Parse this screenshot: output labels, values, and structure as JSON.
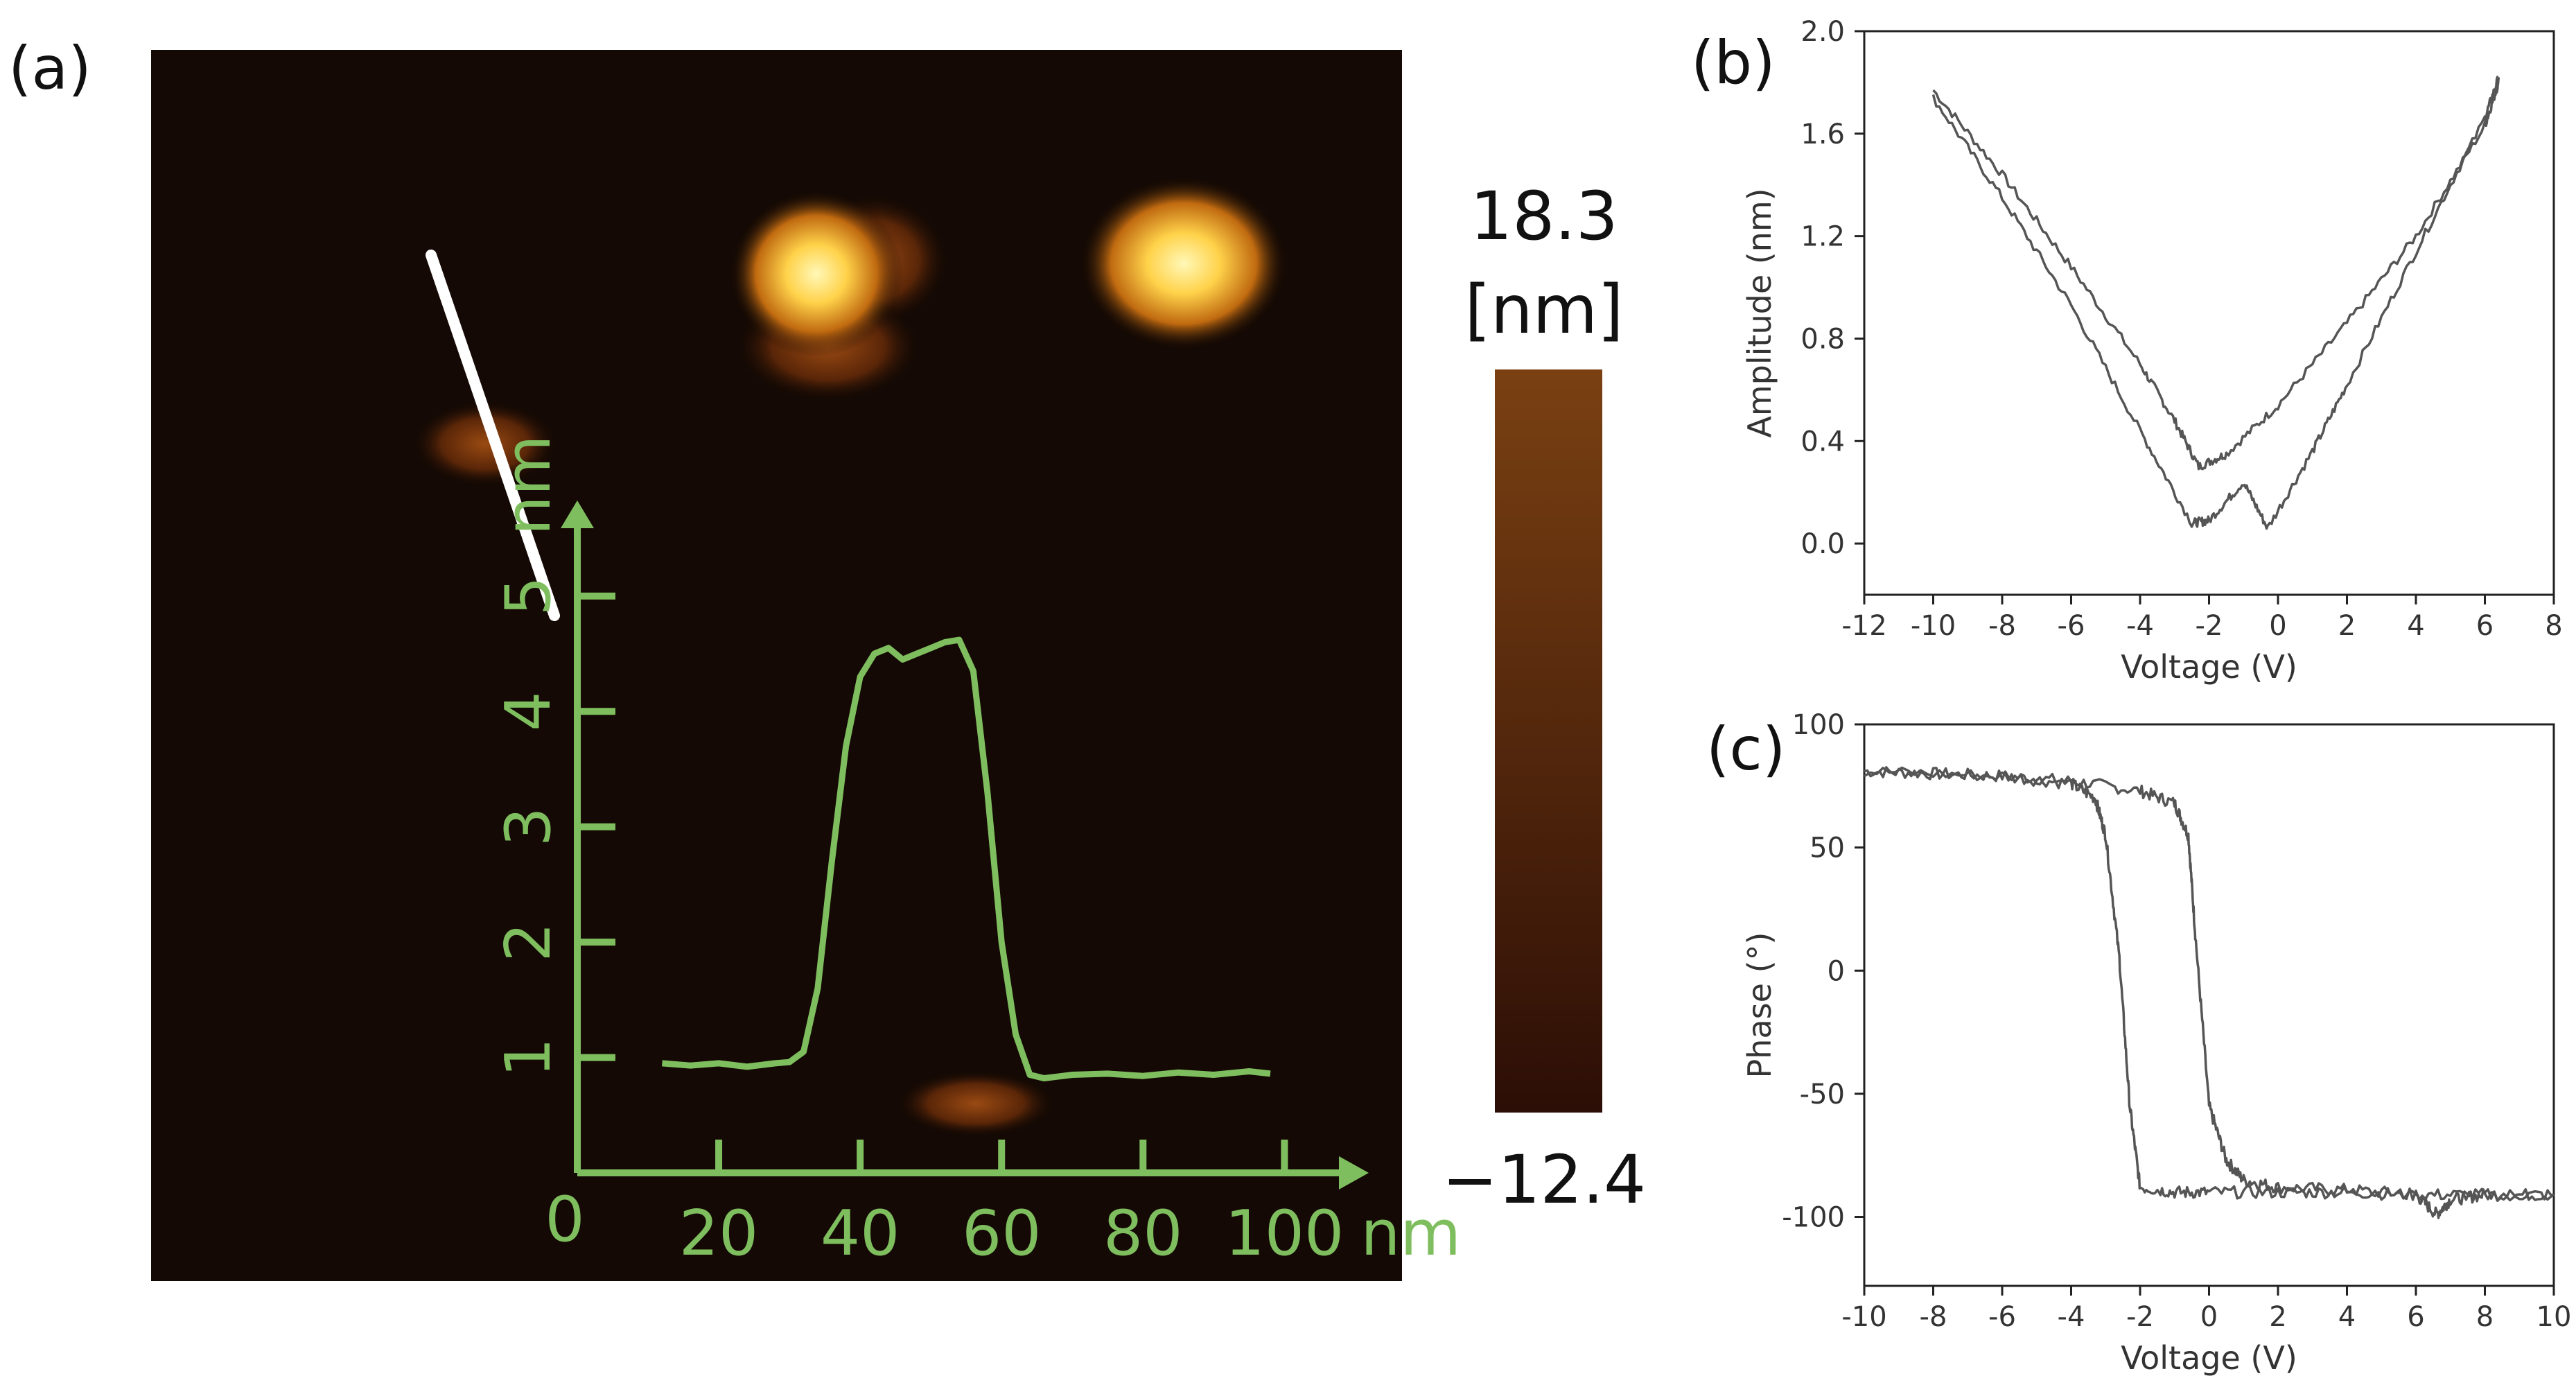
{
  "colors": {
    "background": "#ffffff",
    "afm_dark": "#140904",
    "afm_bright": "#fff3a8",
    "profile_green": "#7fbe5e",
    "scan_line": "#ffffff",
    "trace": "#555555",
    "colorbar_top": "#7a4012",
    "colorbar_bottom": "#2c0e06"
  },
  "panel_labels": {
    "a": "(a)",
    "b": "(b)",
    "c": "(c)"
  },
  "colorbar": {
    "max_label": "18.3",
    "unit_label": "[nm]",
    "min_label": "−12.4"
  },
  "chart_data": [
    {
      "panel": "(a) inset height profile",
      "type": "line",
      "xlabel_unit": "nm",
      "ylabel_unit": "nm",
      "origin_label": "0",
      "xlim": [
        0,
        108
      ],
      "ylim": [
        0,
        5.6
      ],
      "xticks": [
        20,
        40,
        60,
        80,
        100
      ],
      "yticks": [
        1,
        2,
        3,
        4,
        5
      ],
      "x": [
        12,
        16,
        20,
        24,
        28,
        30,
        32,
        34,
        36,
        38,
        40,
        42,
        44,
        46,
        48,
        50,
        52,
        54,
        56,
        58,
        60,
        62,
        64,
        66,
        70,
        75,
        80,
        85,
        90,
        95,
        98
      ],
      "y": [
        0.95,
        0.93,
        0.95,
        0.92,
        0.95,
        0.96,
        1.05,
        1.6,
        2.7,
        3.7,
        4.3,
        4.5,
        4.55,
        4.45,
        4.5,
        4.55,
        4.6,
        4.62,
        4.35,
        3.3,
        2.0,
        1.2,
        0.85,
        0.82,
        0.85,
        0.86,
        0.84,
        0.87,
        0.85,
        0.88,
        0.86
      ]
    },
    {
      "panel": "(b)",
      "type": "line",
      "xlabel": "Voltage (V)",
      "ylabel": "Amplitude (nm)",
      "xlim": [
        -12,
        8
      ],
      "ylim": [
        -0.2,
        2.0
      ],
      "xticks": [
        -12,
        -10,
        -8,
        -6,
        -4,
        -2,
        0,
        2,
        4,
        6,
        8
      ],
      "yticks": [
        0.0,
        0.4,
        0.8,
        1.2,
        1.6,
        2.0
      ],
      "grid": false,
      "series": [
        {
          "x": [
            -10,
            -8,
            -6,
            -4,
            -3,
            -2.3,
            -1.5,
            0,
            2,
            4,
            6,
            6.4
          ],
          "y": [
            1.77,
            1.44,
            1.08,
            0.7,
            0.48,
            0.3,
            0.35,
            0.54,
            0.86,
            1.2,
            1.63,
            1.8
          ]
        },
        {
          "x": [
            -10,
            -8,
            -6,
            -4,
            -2.5,
            -2,
            -1,
            -0.3,
            1,
            2,
            4,
            6,
            6.4
          ],
          "y": [
            1.74,
            1.35,
            0.93,
            0.44,
            0.08,
            0.09,
            0.24,
            0.06,
            0.36,
            0.62,
            1.14,
            1.66,
            1.82
          ]
        }
      ]
    },
    {
      "panel": "(c)",
      "type": "line",
      "xlabel": "Voltage (V)",
      "ylabel": "Phase (°)",
      "xlim": [
        -10,
        10
      ],
      "ylim": [
        -128,
        100
      ],
      "xticks": [
        -10,
        -8,
        -6,
        -4,
        -2,
        0,
        2,
        4,
        6,
        8,
        10
      ],
      "yticks": [
        -100,
        -50,
        0,
        50,
        100
      ],
      "grid": false,
      "series": [
        {
          "x": [
            -10,
            -8,
            -6,
            -4,
            -2,
            -1,
            -0.6,
            -0.4,
            0,
            0.5,
            1,
            2,
            4,
            6,
            6.6,
            7,
            8,
            10
          ],
          "y": [
            81,
            80,
            79,
            77,
            73,
            68,
            55,
            15,
            -55,
            -77,
            -85,
            -88,
            -89,
            -91,
            -99,
            -93,
            -91,
            -91
          ]
        },
        {
          "x": [
            -10,
            -6,
            -4,
            -3.3,
            -3,
            -2.6,
            -2.3,
            -2,
            -1,
            0,
            2,
            4,
            6,
            8,
            10
          ],
          "y": [
            81,
            79,
            76,
            70,
            55,
            5,
            -55,
            -88,
            -90,
            -90,
            -90,
            -90,
            -91,
            -91,
            -91
          ]
        }
      ]
    }
  ]
}
